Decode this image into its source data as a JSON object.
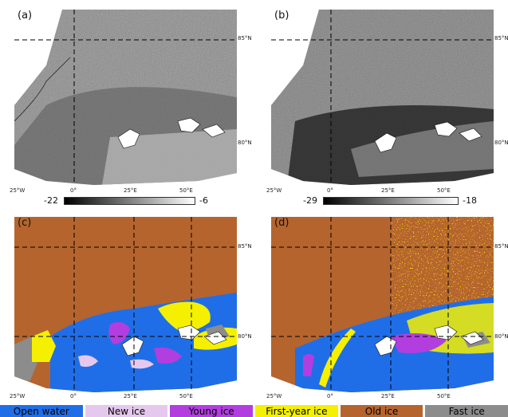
{
  "panels": {
    "a": {
      "label": "(a)"
    },
    "b": {
      "label": "(b)"
    },
    "c": {
      "label": "(c)"
    },
    "d": {
      "label": "(d)"
    }
  },
  "lat_labels": {
    "north": "85°N",
    "south": "80°N"
  },
  "lon_labels": {
    "west": "25°W",
    "zero": "0°",
    "east25": "25°E",
    "east50": "50°E"
  },
  "colorbars": {
    "a": {
      "min": "-22",
      "max": "-6"
    },
    "b": {
      "min": "-29",
      "max": "-18"
    }
  },
  "legend": [
    {
      "label": "Open water",
      "color": "#1f6ee8",
      "text_color": "#000000"
    },
    {
      "label": "New ice",
      "color": "#e6c8ee",
      "text_color": "#000000"
    },
    {
      "label": "Young ice",
      "color": "#b23ee0",
      "text_color": "#000000"
    },
    {
      "label": "First-year ice",
      "color": "#f4f000",
      "text_color": "#000000"
    },
    {
      "label": "Old ice",
      "color": "#b5642e",
      "text_color": "#000000"
    },
    {
      "label": "Fast ice",
      "color": "#8c8c8c",
      "text_color": "#000000"
    }
  ]
}
